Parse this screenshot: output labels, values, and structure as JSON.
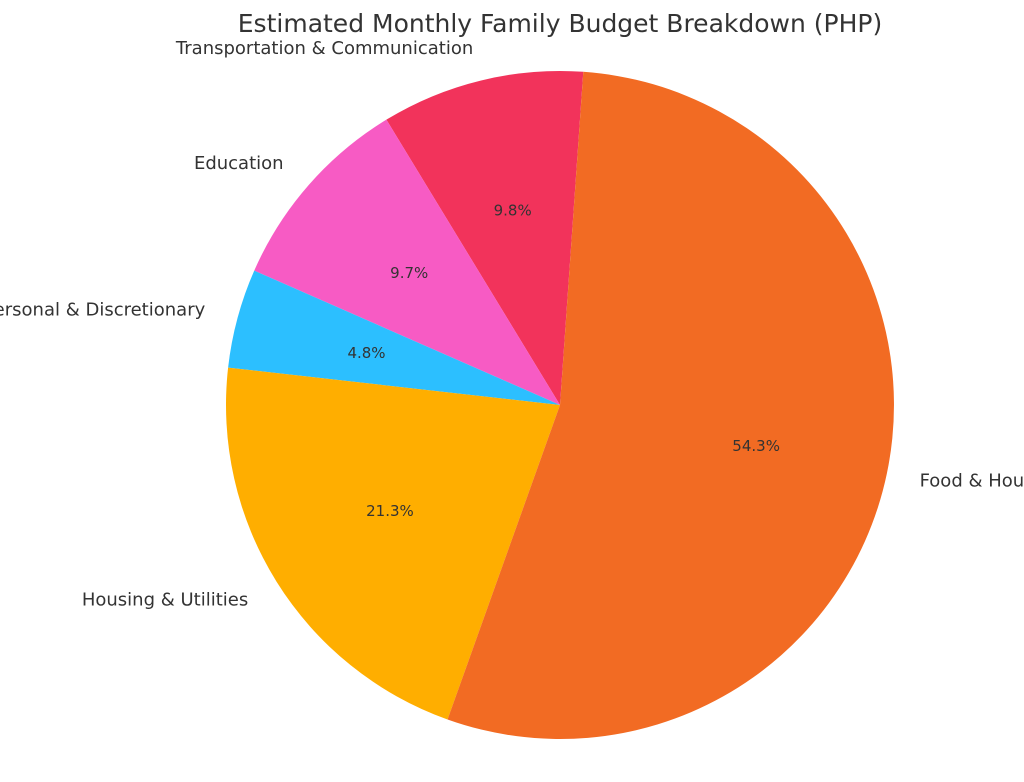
{
  "chart_data": {
    "type": "pie",
    "title": "Estimated Monthly Family Budget Breakdown (PHP)",
    "start_angle_deg": 86,
    "direction": "counterclockwise",
    "slices": [
      {
        "label": "Transportation & Communication",
        "value": 9.8,
        "pct_label": "9.8%",
        "color": "#F2335B"
      },
      {
        "label": "Education",
        "value": 9.7,
        "pct_label": "9.7%",
        "color": "#F75BC4"
      },
      {
        "label": "Personal & Discretionary",
        "value": 4.8,
        "pct_label": "4.8%",
        "color": "#2CBFFF"
      },
      {
        "label": "Housing & Utilities",
        "value": 21.3,
        "pct_label": "21.3%",
        "color": "#FFAE00"
      },
      {
        "label": "Food & Household",
        "value": 54.3,
        "pct_label": "54.3%",
        "color": "#F26B23"
      }
    ]
  }
}
